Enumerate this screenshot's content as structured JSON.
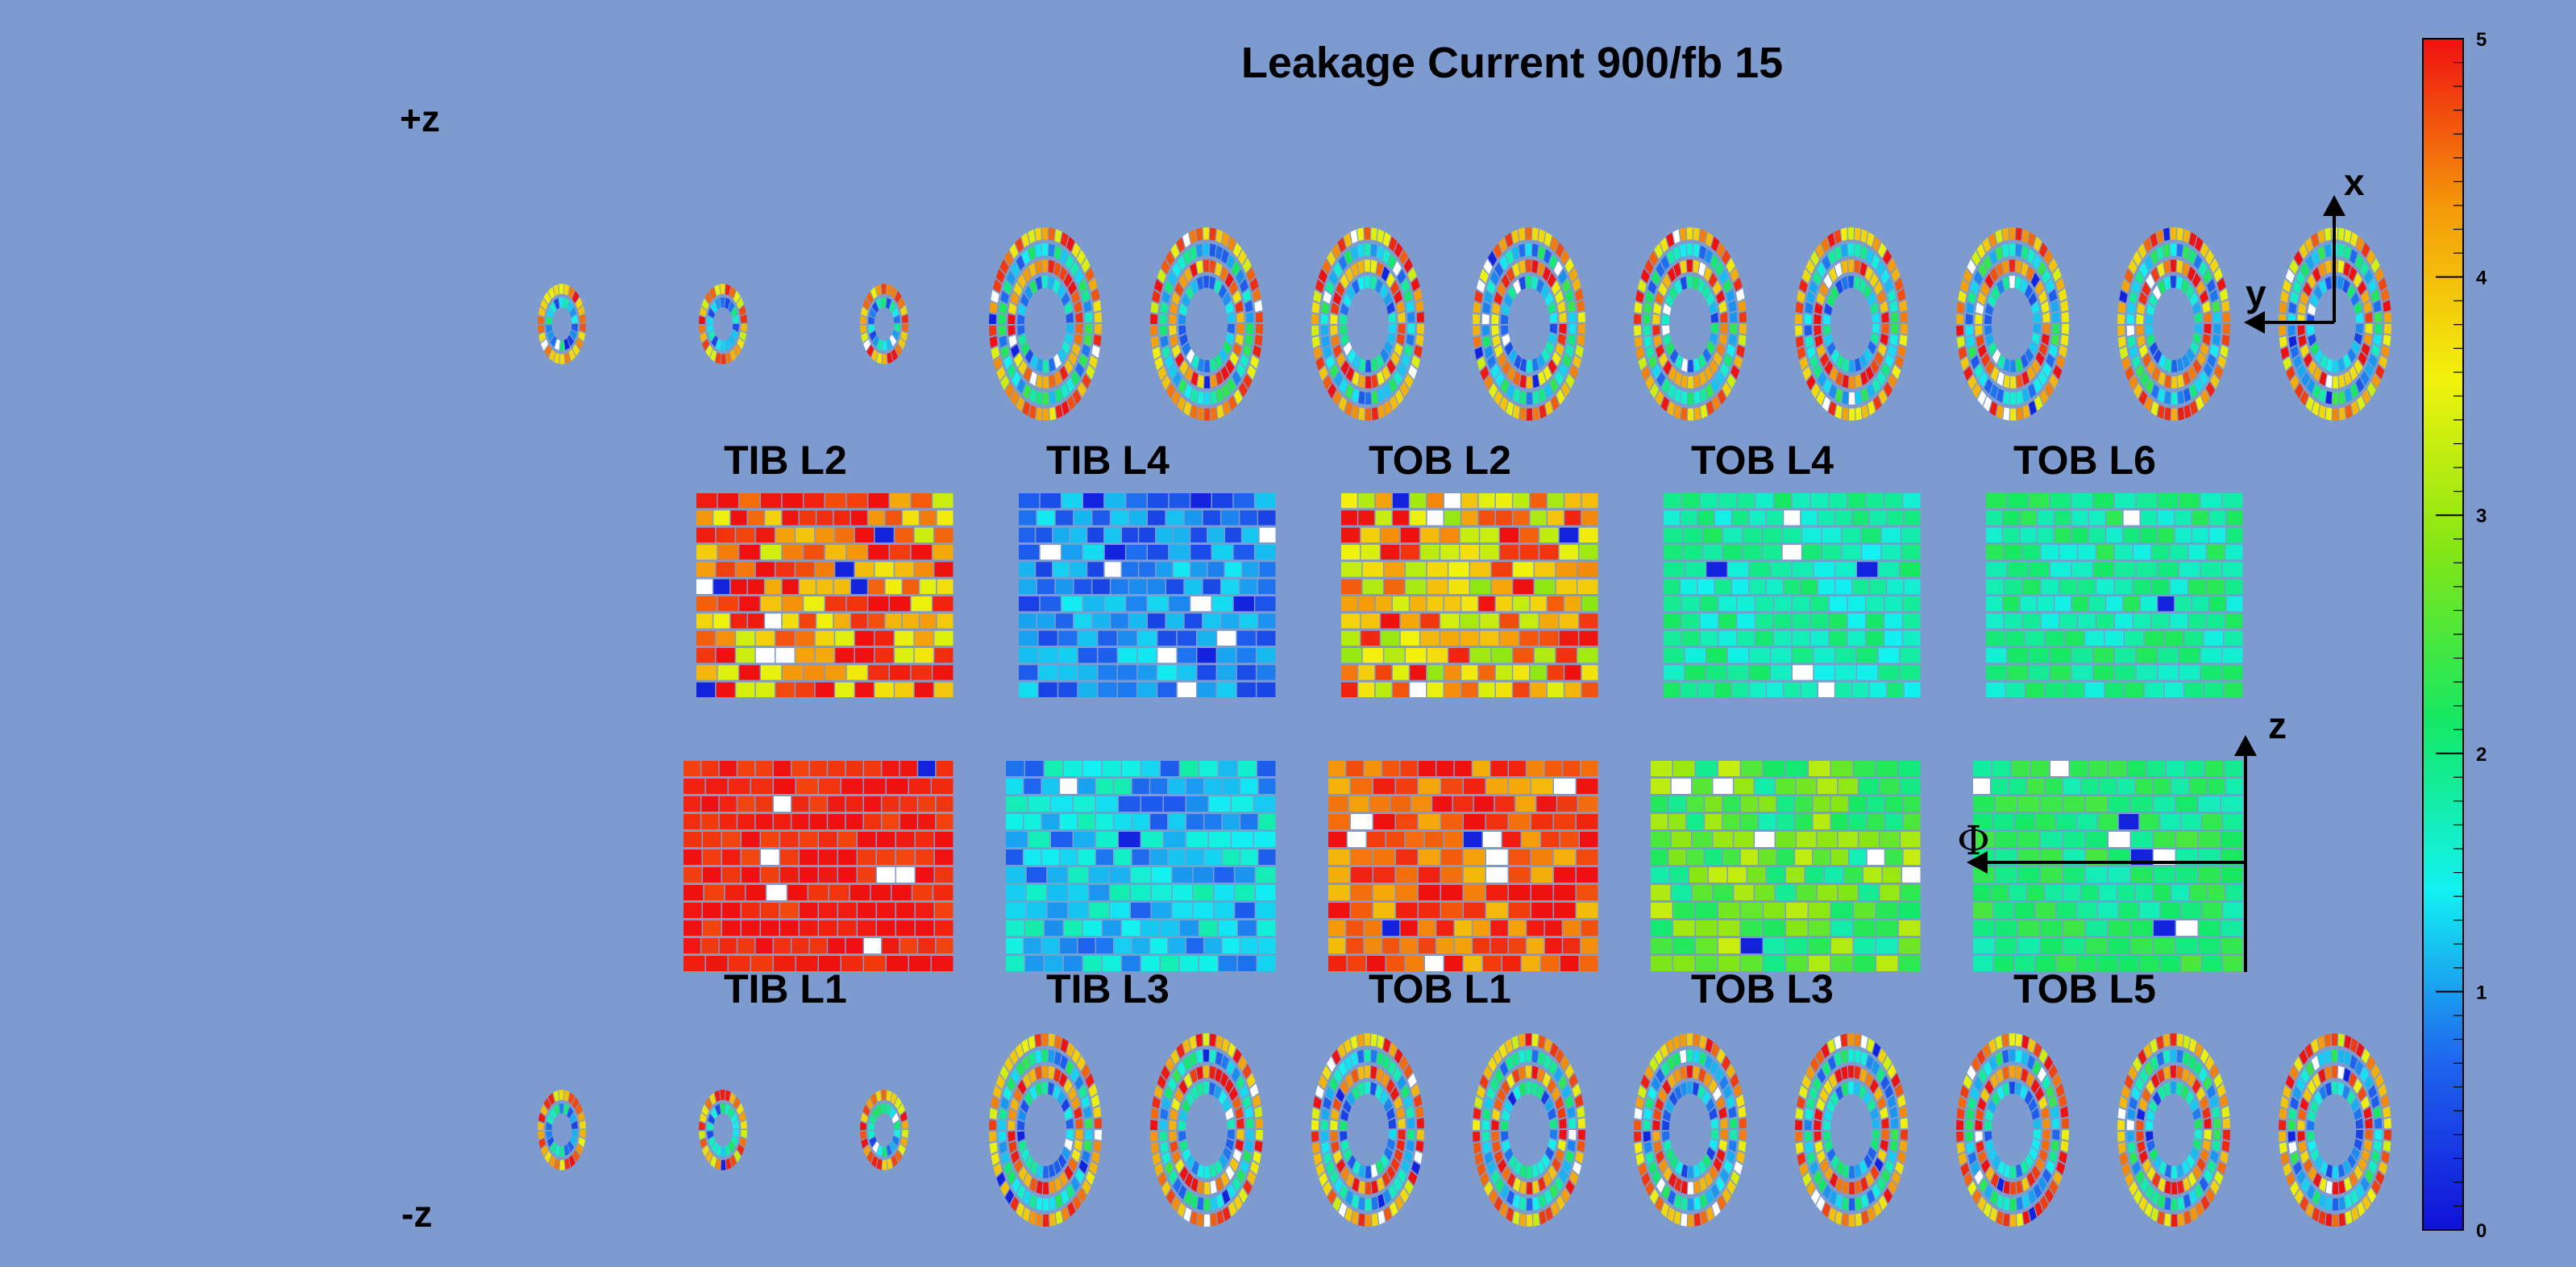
{
  "chart_data": {
    "type": "heatmap",
    "title": "Leakage Current 900/fb 15",
    "plus_z_label": "+z",
    "minus_z_label": "-z",
    "colorbar": {
      "min": 0,
      "max": 5,
      "ticks": [
        "0",
        "1",
        "2",
        "3",
        "4",
        "5"
      ],
      "colors": [
        "#1010d8",
        "#1f66ee",
        "#12f2f2",
        "#15e863",
        "#84e614",
        "#f2f20c",
        "#f59a0a",
        "#f01010"
      ]
    },
    "upper_layers": [
      {
        "name": "TIB L2",
        "level": 4.3,
        "spread": 1.0
      },
      {
        "name": "TIB L4",
        "level": 0.9,
        "spread": 0.5
      },
      {
        "name": "TOB L2",
        "level": 4.0,
        "spread": 1.1
      },
      {
        "name": "TOB L4",
        "level": 1.8,
        "spread": 0.4
      },
      {
        "name": "TOB L6",
        "level": 1.9,
        "spread": 0.4
      }
    ],
    "lower_layers": [
      {
        "name": "TIB L1",
        "level": 4.9,
        "spread": 0.2
      },
      {
        "name": "TIB L3",
        "level": 1.2,
        "spread": 0.6
      },
      {
        "name": "TOB L1",
        "level": 4.6,
        "spread": 0.6
      },
      {
        "name": "TOB L3",
        "level": 2.5,
        "spread": 0.8
      },
      {
        "name": "TOB L5",
        "level": 2.1,
        "spread": 0.4
      }
    ],
    "disk_rows": [
      {
        "side": "+z",
        "disks": 12
      },
      {
        "side": "-z",
        "disks": 12
      }
    ],
    "axis_labels": {
      "disk_x": "x",
      "disk_y": "y",
      "barrel_z": "z",
      "barrel_phi": "Φ"
    }
  }
}
